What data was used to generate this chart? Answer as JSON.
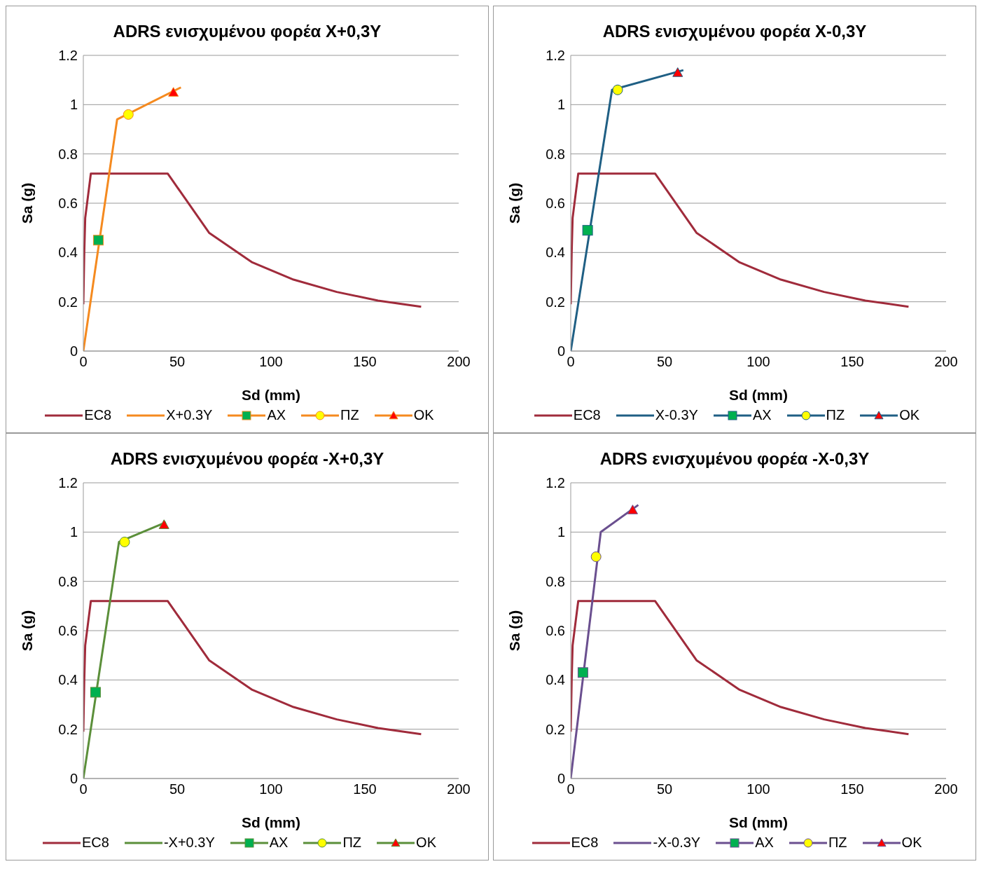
{
  "chart_data": [
    {
      "type": "line",
      "title": "ADRS ενισχυμένου φορέα X+0,3Y",
      "xlabel": "Sd (mm)",
      "ylabel": "Sa (g)",
      "xlim": [
        0,
        200
      ],
      "xticks": [
        0,
        50,
        100,
        150,
        200
      ],
      "ylim": [
        0,
        1.2
      ],
      "yticks": [
        0,
        0.2,
        0.4,
        0.6,
        0.8,
        1,
        1.2
      ],
      "grid": "y",
      "legend": "bottom",
      "series": [
        {
          "name": "EC8",
          "color": "#a02b3b",
          "marker": "none",
          "x": [
            0,
            0.5,
            1,
            4,
            45,
            67,
            90,
            112,
            135,
            157,
            180
          ],
          "values": [
            0.19,
            0.4,
            0.54,
            0.72,
            0.72,
            0.48,
            0.36,
            0.29,
            0.24,
            0.205,
            0.18
          ]
        },
        {
          "name": "X+0.3Y",
          "color": "#f58a1f",
          "marker": "none",
          "x": [
            0,
            18,
            52
          ],
          "values": [
            0,
            0.94,
            1.07
          ]
        },
        {
          "name": "AX",
          "type": "scatter",
          "color": "#00b050",
          "marker": "square",
          "x": [
            8
          ],
          "values": [
            0.45
          ]
        },
        {
          "name": "ΠΖ",
          "type": "scatter",
          "color": "#ffff00",
          "marker": "circle",
          "x": [
            24
          ],
          "values": [
            0.96
          ]
        },
        {
          "name": "OK",
          "type": "scatter",
          "color": "#ff0000",
          "marker": "triangle",
          "x": [
            48
          ],
          "values": [
            1.05
          ]
        }
      ]
    },
    {
      "type": "line",
      "title": "ADRS ενισχυμένου φορέα X-0,3Y",
      "xlabel": "Sd (mm)",
      "ylabel": "Sa (g)",
      "xlim": [
        0,
        200
      ],
      "xticks": [
        0,
        50,
        100,
        150,
        200
      ],
      "ylim": [
        0,
        1.2
      ],
      "yticks": [
        0,
        0.2,
        0.4,
        0.6,
        0.8,
        1,
        1.2
      ],
      "grid": "y",
      "legend": "bottom",
      "series": [
        {
          "name": "EC8",
          "color": "#a02b3b",
          "marker": "none",
          "x": [
            0,
            0.5,
            1,
            4,
            45,
            67,
            90,
            112,
            135,
            157,
            180
          ],
          "values": [
            0.19,
            0.4,
            0.54,
            0.72,
            0.72,
            0.48,
            0.36,
            0.29,
            0.24,
            0.205,
            0.18
          ]
        },
        {
          "name": "X-0.3Y",
          "color": "#1f5f84",
          "marker": "none",
          "x": [
            0,
            22,
            60
          ],
          "values": [
            0,
            1.06,
            1.14
          ]
        },
        {
          "name": "AX",
          "type": "scatter",
          "color": "#00b050",
          "marker": "square",
          "x": [
            9
          ],
          "values": [
            0.49
          ]
        },
        {
          "name": "ΠΖ",
          "type": "scatter",
          "color": "#ffff00",
          "marker": "circle",
          "x": [
            25
          ],
          "values": [
            1.06
          ]
        },
        {
          "name": "OK",
          "type": "scatter",
          "color": "#ff0000",
          "marker": "triangle",
          "x": [
            57
          ],
          "values": [
            1.13
          ]
        }
      ]
    },
    {
      "type": "line",
      "title": "ADRS ενισχυμένου φορέα -X+0,3Y",
      "xlabel": "Sd (mm)",
      "ylabel": "Sa (g)",
      "xlim": [
        0,
        200
      ],
      "xticks": [
        0,
        50,
        100,
        150,
        200
      ],
      "ylim": [
        0,
        1.2
      ],
      "yticks": [
        0,
        0.2,
        0.4,
        0.6,
        0.8,
        1,
        1.2
      ],
      "grid": "y",
      "legend": "bottom",
      "series": [
        {
          "name": "EC8",
          "color": "#a02b3b",
          "marker": "none",
          "x": [
            0,
            0.5,
            1,
            4,
            45,
            67,
            90,
            112,
            135,
            157,
            180
          ],
          "values": [
            0.19,
            0.4,
            0.54,
            0.72,
            0.72,
            0.48,
            0.36,
            0.29,
            0.24,
            0.205,
            0.18
          ]
        },
        {
          "name": "-X+0.3Y",
          "color": "#5b8f3a",
          "marker": "none",
          "x": [
            0,
            19,
            44
          ],
          "values": [
            0,
            0.96,
            1.04
          ]
        },
        {
          "name": "AX",
          "type": "scatter",
          "color": "#00b050",
          "marker": "square",
          "x": [
            6.5
          ],
          "values": [
            0.35
          ]
        },
        {
          "name": "ΠΖ",
          "type": "scatter",
          "color": "#ffff00",
          "marker": "circle",
          "x": [
            22
          ],
          "values": [
            0.96
          ]
        },
        {
          "name": "OK",
          "type": "scatter",
          "color": "#ff0000",
          "marker": "triangle",
          "x": [
            43
          ],
          "values": [
            1.03
          ]
        }
      ]
    },
    {
      "type": "line",
      "title": "ADRS ενισχυμένου φορέα -X-0,3Y",
      "xlabel": "Sd (mm)",
      "ylabel": "Sa (g)",
      "xlim": [
        0,
        200
      ],
      "xticks": [
        0,
        50,
        100,
        150,
        200
      ],
      "ylim": [
        0,
        1.2
      ],
      "yticks": [
        0,
        0.2,
        0.4,
        0.6,
        0.8,
        1,
        1.2
      ],
      "grid": "y",
      "legend": "bottom",
      "series": [
        {
          "name": "EC8",
          "color": "#a02b3b",
          "marker": "none",
          "x": [
            0,
            0.5,
            1,
            4,
            45,
            67,
            90,
            112,
            135,
            157,
            180
          ],
          "values": [
            0.19,
            0.4,
            0.54,
            0.72,
            0.72,
            0.48,
            0.36,
            0.29,
            0.24,
            0.205,
            0.18
          ]
        },
        {
          "name": "-X-0.3Y",
          "color": "#6a4f8f",
          "marker": "none",
          "x": [
            0,
            16,
            36
          ],
          "values": [
            0,
            1.0,
            1.11
          ]
        },
        {
          "name": "AX",
          "type": "scatter",
          "color": "#00b050",
          "marker": "square",
          "x": [
            6.5
          ],
          "values": [
            0.43
          ]
        },
        {
          "name": "ΠΖ",
          "type": "scatter",
          "color": "#ffff00",
          "marker": "circle",
          "x": [
            13.5
          ],
          "values": [
            0.9
          ]
        },
        {
          "name": "OK",
          "type": "scatter",
          "color": "#ff0000",
          "marker": "triangle",
          "x": [
            33
          ],
          "values": [
            1.09
          ]
        }
      ]
    }
  ]
}
